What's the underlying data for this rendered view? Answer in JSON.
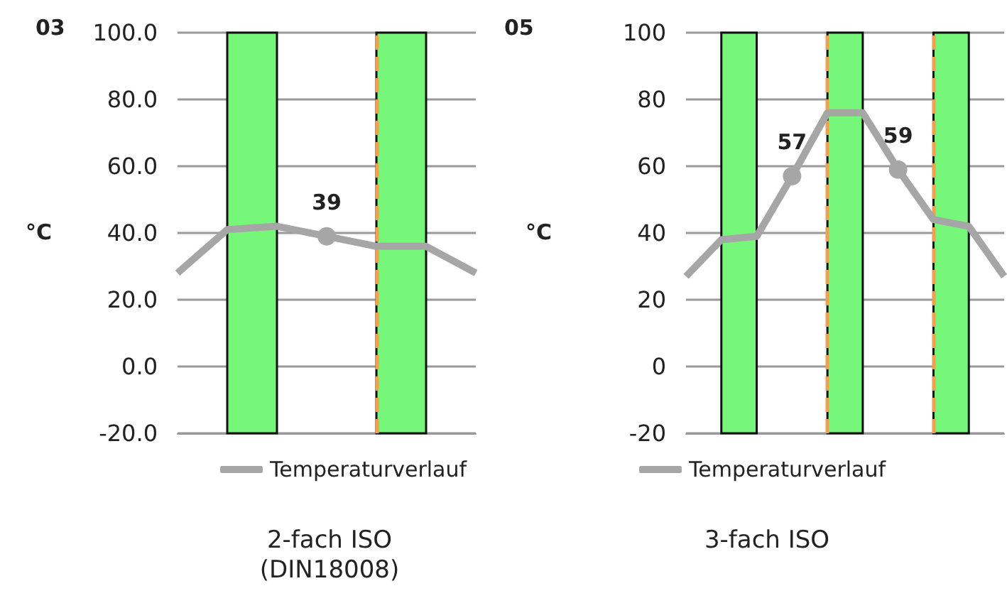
{
  "chart_data": [
    {
      "type": "line",
      "title": "03",
      "ylabel": "°C",
      "categories": [
        null,
        null,
        null,
        null,
        null,
        null,
        null
      ],
      "ylim": [
        -20,
        100
      ],
      "yticks": [
        {
          "value": -20,
          "label": "-20.0"
        },
        {
          "value": 0,
          "label": "0.0"
        },
        {
          "value": 20,
          "label": "20.0"
        },
        {
          "value": 40,
          "label": "40.0"
        },
        {
          "value": 60,
          "label": "60.0"
        },
        {
          "value": 80,
          "label": "80.0"
        },
        {
          "value": 100,
          "label": "100.0"
        }
      ],
      "tick_labels": "y",
      "grid": "y",
      "legend": "bottom",
      "annotations": [
        "2-fach ISO\n(DIN18008)"
      ],
      "series": [
        {
          "name": "Temperaturverlauf",
          "color": "#a6a6a6",
          "values": [
            28,
            41,
            42,
            39,
            36,
            36,
            28
          ],
          "value_labels": [
            null,
            null,
            null,
            "39",
            null,
            null,
            null
          ]
        }
      ]
    },
    {
      "type": "line",
      "title": "05",
      "ylabel": "°C",
      "categories": [
        null,
        null,
        null,
        null,
        null,
        null,
        null,
        null,
        null,
        null
      ],
      "ylim": [
        -20,
        100
      ],
      "yticks": [
        -20,
        0,
        20,
        40,
        60,
        80,
        100
      ],
      "tick_labels": "y",
      "grid": "y",
      "legend": "bottom",
      "annotations": [
        "3-fach ISO"
      ],
      "series": [
        {
          "name": "Temperaturverlauf",
          "color": "#a6a6a6",
          "values": [
            27,
            38,
            39,
            57,
            76,
            76,
            59,
            44,
            42,
            27
          ],
          "value_labels": [
            null,
            null,
            null,
            "57",
            null,
            null,
            "59",
            null,
            null,
            null
          ]
        }
      ]
    }
  ]
}
